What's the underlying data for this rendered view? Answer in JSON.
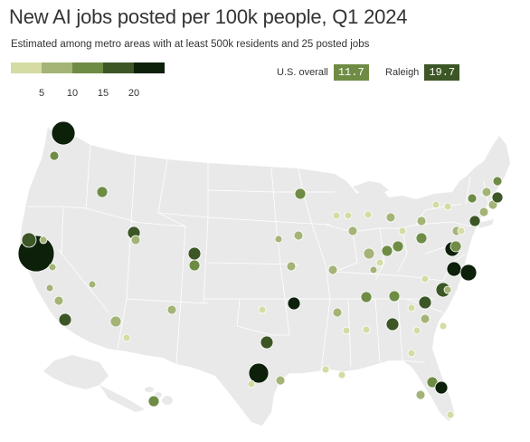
{
  "title": "New AI jobs posted per 100k people, Q1 2024",
  "subtitle": "Estimated among metro areas with at least 500k residents and 25 posted jobs",
  "legend": {
    "ticks": [
      "5",
      "10",
      "15",
      "20"
    ],
    "bins": [
      {
        "color": "#d4dca4"
      },
      {
        "color": "#a3b476"
      },
      {
        "color": "#6f8c44"
      },
      {
        "color": "#3c5626"
      },
      {
        "color": "#0c200a"
      }
    ]
  },
  "reference": {
    "us_label": "U.S. overall",
    "us_value": "11.7",
    "us_color": "#6f8c44",
    "raleigh_label": "Raleigh",
    "raleigh_value": "19.7",
    "raleigh_color": "#3c5626"
  },
  "colors": {
    "land": "#e9e9e9",
    "borders": "#ffffff"
  }
}
